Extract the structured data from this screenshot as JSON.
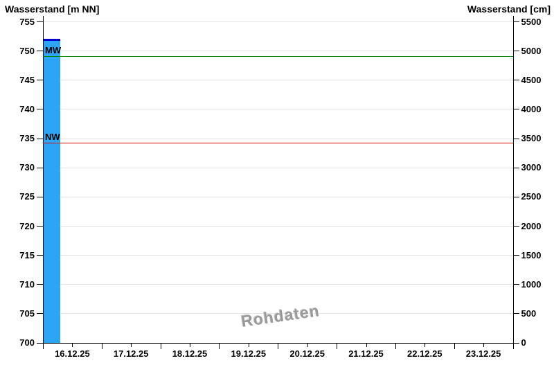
{
  "header": {
    "left_axis_title": "Wasserstand [m NN]",
    "right_axis_title": "Wasserstand [cm]"
  },
  "watermark": {
    "text": "Rohdaten"
  },
  "colors": {
    "background": "#FFFFFF",
    "axis": "#000000",
    "grid": "#E4E4E4",
    "bar": "#2AA6F5",
    "bar_cap": "#0000CD",
    "mw_line": "#008000",
    "nw_line": "#E00000",
    "watermark": "#9A9A9A"
  },
  "chart_data": {
    "type": "bar",
    "title": "",
    "left_axis": {
      "label": "Wasserstand [m NN]",
      "min": 700,
      "max": 755,
      "tick_step": 5,
      "tick_labels": [
        "755",
        "750",
        "745",
        "740",
        "735",
        "730",
        "725",
        "720",
        "715",
        "710",
        "705",
        "700"
      ],
      "tick_values": [
        755,
        750,
        745,
        740,
        735,
        730,
        725,
        720,
        715,
        710,
        705,
        700
      ]
    },
    "right_axis": {
      "label": "Wasserstand [cm]",
      "min": 0,
      "max": 5500,
      "tick_step": 500,
      "tick_labels": [
        "5500",
        "5000",
        "4500",
        "4000",
        "3500",
        "3000",
        "2500",
        "2000",
        "1500",
        "1000",
        "500",
        "0"
      ],
      "tick_values": [
        5500,
        5000,
        4500,
        4000,
        3500,
        3000,
        2500,
        2000,
        1500,
        1000,
        500,
        0
      ]
    },
    "x_axis": {
      "num_days": 8,
      "tick_labels": [
        "16.12.25",
        "17.12.25",
        "18.12.25",
        "19.12.25",
        "20.12.25",
        "21.12.25",
        "22.12.25",
        "23.12.25"
      ]
    },
    "grid": {
      "horizontal": true,
      "vertical": false
    },
    "series": [
      {
        "name": "Wasserstand Rohdaten",
        "render": "bar",
        "day_start": 0.0,
        "day_end": 0.29,
        "value_m": 751.8,
        "value_cm": 5180
      }
    ],
    "reference_lines": [
      {
        "label": "MW",
        "value_m": 749.1,
        "value_cm": 4910,
        "color_key": "mw_line"
      },
      {
        "label": "NW",
        "value_m": 734.2,
        "value_cm": 3420,
        "color_key": "nw_line"
      }
    ]
  }
}
